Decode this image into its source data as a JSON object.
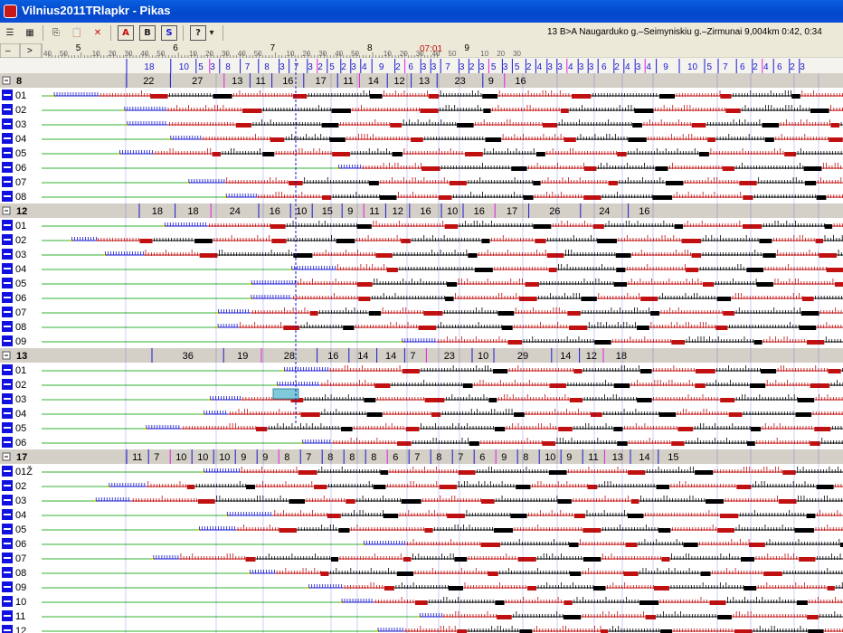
{
  "window": {
    "title": "Vilnius2011TRlapkr - Pikas"
  },
  "toolbar": {
    "buttons": [
      {
        "name": "list-view-icon",
        "glyph": "☰"
      },
      {
        "name": "chart-view-icon",
        "glyph": "▦"
      },
      {
        "name": "copy-icon",
        "glyph": "⎘"
      },
      {
        "name": "paste-icon",
        "glyph": "📋"
      },
      {
        "name": "delete-icon",
        "glyph": "✕"
      },
      {
        "name": "report-a-icon",
        "glyph": "A"
      },
      {
        "name": "report-b-icon",
        "glyph": "B"
      },
      {
        "name": "report-s-icon",
        "glyph": "S"
      },
      {
        "name": "help-icon",
        "glyph": "?"
      },
      {
        "name": "dropdown-arrow-icon",
        "glyph": "▾"
      }
    ],
    "status": "13 B>A Naugarduko g.–Seimyniskiu g.–Zirmunai 9,004km 0:42, 0:34"
  },
  "timeline": {
    "nav_left": "–",
    "nav_right": ">",
    "current_time": "07:01",
    "minute_labels": [
      "40",
      "50",
      "5",
      "10",
      "20",
      "30",
      "40",
      "50",
      "6",
      "10",
      "20",
      "30",
      "40",
      "50",
      "7",
      "10",
      "20",
      "30",
      "40",
      "50",
      "8",
      "10",
      "20",
      "30",
      "40",
      "50",
      "9",
      "10",
      "20",
      "30"
    ],
    "hour_labels": [
      "5",
      "6",
      "7",
      "8",
      "9"
    ],
    "headway_labels": [
      "18",
      "10",
      "5",
      "3",
      "8",
      "7",
      "8",
      "3",
      "7",
      "3",
      "2",
      "5",
      "2",
      "3",
      "4",
      "9",
      "2",
      "6",
      "3",
      "3",
      "7",
      "3",
      "2",
      "3",
      "5",
      "3",
      "5",
      "2",
      "4",
      "3",
      "3",
      "4",
      "3",
      "3",
      "6",
      "2",
      "4",
      "3",
      "4",
      "9",
      "10",
      "5",
      "7",
      "6",
      "2",
      "4",
      "6",
      "2",
      "3"
    ]
  },
  "routes": [
    {
      "id": "8",
      "headways": [
        "22",
        "27",
        "13",
        "11",
        "16",
        "17",
        "11",
        "14",
        "12",
        "13",
        "23",
        "9",
        "16"
      ],
      "vehicles": [
        "01",
        "02",
        "03",
        "04",
        "05",
        "06",
        "07",
        "08"
      ]
    },
    {
      "id": "12",
      "headways": [
        "18",
        "18",
        "24",
        "16",
        "10",
        "15",
        "9",
        "11",
        "12",
        "16",
        "10",
        "16",
        "17",
        "26",
        "24",
        "16"
      ],
      "vehicles": [
        "01",
        "02",
        "03",
        "04",
        "05",
        "06",
        "07",
        "08",
        "09"
      ]
    },
    {
      "id": "13",
      "headways": [
        "36",
        "19",
        "28",
        "16",
        "14",
        "14",
        "7",
        "23",
        "10",
        "29",
        "14",
        "12",
        "18"
      ],
      "vehicles": [
        "01",
        "02",
        "03",
        "04",
        "05",
        "06"
      ]
    },
    {
      "id": "17",
      "headways": [
        "11",
        "7",
        "10",
        "10",
        "10",
        "9",
        "9",
        "8",
        "7",
        "8",
        "8",
        "8",
        "6",
        "7",
        "8",
        "7",
        "6",
        "9",
        "8",
        "10",
        "9",
        "11",
        "13",
        "14",
        "15"
      ],
      "vehicles": [
        "01Ž",
        "02",
        "03",
        "04",
        "05",
        "06",
        "07",
        "08",
        "09",
        "10",
        "11",
        "12"
      ]
    }
  ],
  "colors": {
    "route_header_bg": "#d4d0c8",
    "vehicle_marker": "#1010e0",
    "trip_a": "#c01010",
    "trip_b": "#000000",
    "deadhead": "#1515cc",
    "layover": "#30b030",
    "selection": "#7fc9d9",
    "current_time": "#c01010",
    "ticks_blue": "#1a1ad0",
    "magenta": "#e020e0"
  }
}
